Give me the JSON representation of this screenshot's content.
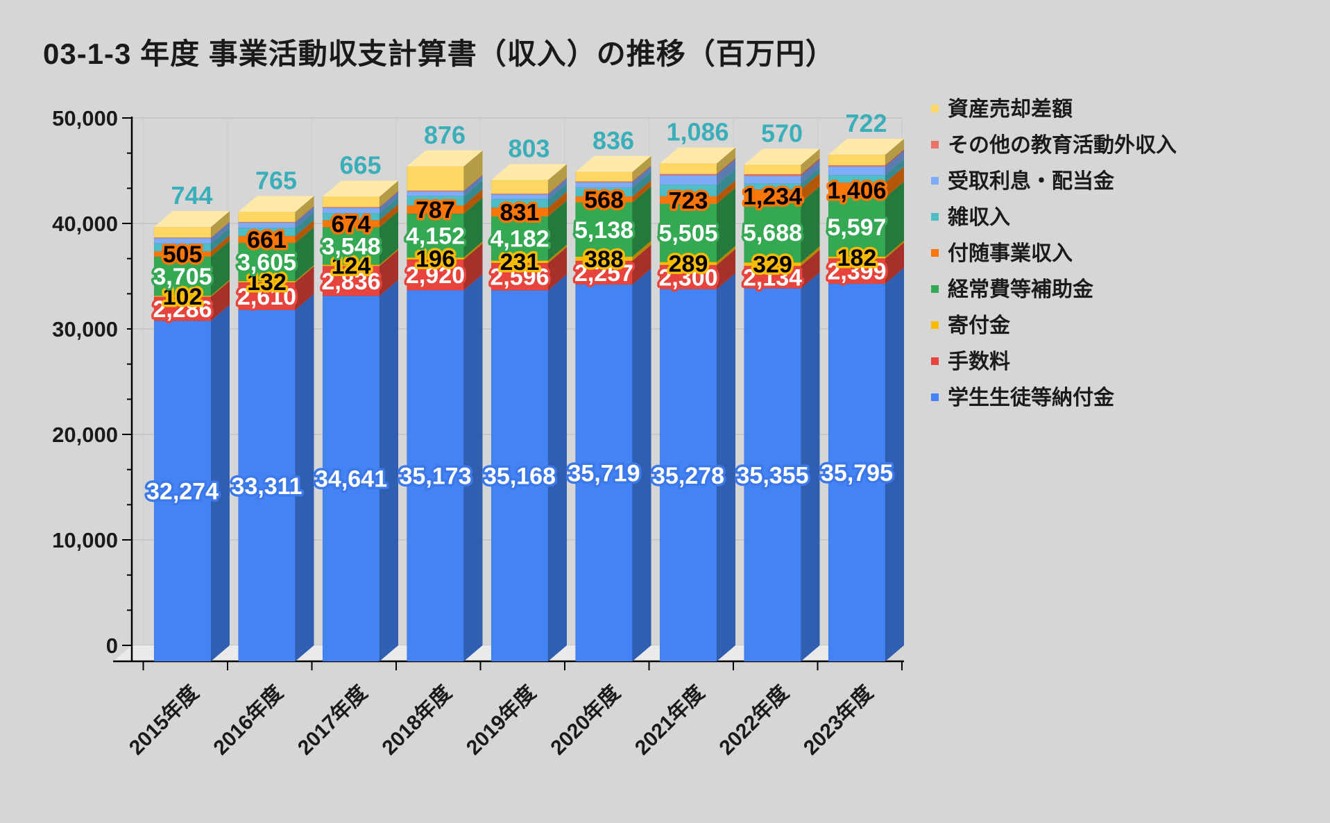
{
  "chart_data": {
    "type": "bar",
    "variant": "3d-stacked-column",
    "title": "03-1-3 年度 事業活動収支計算書（収入）の推移（百万円）",
    "unit": "百万円",
    "categories": [
      "2015年度",
      "2016年度",
      "2017年度",
      "2018年度",
      "2019年度",
      "2020年度",
      "2021年度",
      "2022年度",
      "2023年度"
    ],
    "ylim": [
      0,
      50000
    ],
    "y_ticks": [
      0,
      10000,
      20000,
      30000,
      40000,
      50000
    ],
    "y_tick_labels": [
      "0",
      "10,000",
      "20,000",
      "30,000",
      "40,000",
      "50,000"
    ],
    "minor_ticks_per_major": 2,
    "grid": "horizontal-major",
    "legend_position": "right",
    "legend_order": "reversed-of-stack",
    "background_color": "#d6d6d6",
    "series": [
      {
        "name": "学生生徒等納付金",
        "color": "#4383f4",
        "label_fill": "#ffffff",
        "label_stroke": "#3d78e8",
        "labeled": true,
        "values": [
          32274,
          33311,
          34641,
          35173,
          35168,
          35719,
          35278,
          35355,
          35795
        ]
      },
      {
        "name": "手数料",
        "color": "#e6443c",
        "label_fill": "#ffffff",
        "label_stroke": "#e6443c",
        "labeled": true,
        "values": [
          2286,
          2610,
          2836,
          2920,
          2596,
          2257,
          2300,
          2134,
          2399
        ]
      },
      {
        "name": "寄付金",
        "color": "#f9bc05",
        "label_fill": "#000000",
        "label_stroke": "#f9bc05",
        "labeled": true,
        "values": [
          102,
          132,
          124,
          196,
          231,
          388,
          289,
          329,
          182
        ]
      },
      {
        "name": "経常費等補助金",
        "color": "#35a853",
        "label_fill": "#ffffff",
        "label_stroke": "#35a853",
        "labeled": true,
        "values": [
          3705,
          3605,
          3548,
          4152,
          4182,
          5138,
          5505,
          5688,
          5597
        ]
      },
      {
        "name": "付随事業収入",
        "color": "#f8770b",
        "label_fill": "#000000",
        "label_stroke": "#f8770b",
        "labeled": true,
        "values": [
          505,
          661,
          674,
          787,
          831,
          568,
          723,
          1234,
          1406
        ]
      },
      {
        "name": "雑収入",
        "color": "#4dbdc6",
        "label_fill": "#3aafba",
        "label_stroke": "none",
        "labeled": true,
        "label_position": "above-bar",
        "values": [
          744,
          765,
          665,
          876,
          803,
          836,
          1086,
          570,
          722
        ]
      },
      {
        "name": "受取利息・配当金",
        "color": "#7facf8",
        "labeled": false,
        "estimated": true,
        "values": [
          500,
          500,
          500,
          450,
          450,
          500,
          900,
          700,
          800
        ]
      },
      {
        "name": "その他の教育活動外収入",
        "color": "#e9756a",
        "labeled": false,
        "estimated": true,
        "values": [
          60,
          70,
          70,
          70,
          70,
          90,
          120,
          170,
          130
        ]
      },
      {
        "name": "資産売却差額",
        "color": "#fdd763",
        "labeled": false,
        "estimated": true,
        "values": [
          1000,
          950,
          1000,
          2300,
          1300,
          900,
          1000,
          900,
          1000
        ]
      }
    ]
  }
}
